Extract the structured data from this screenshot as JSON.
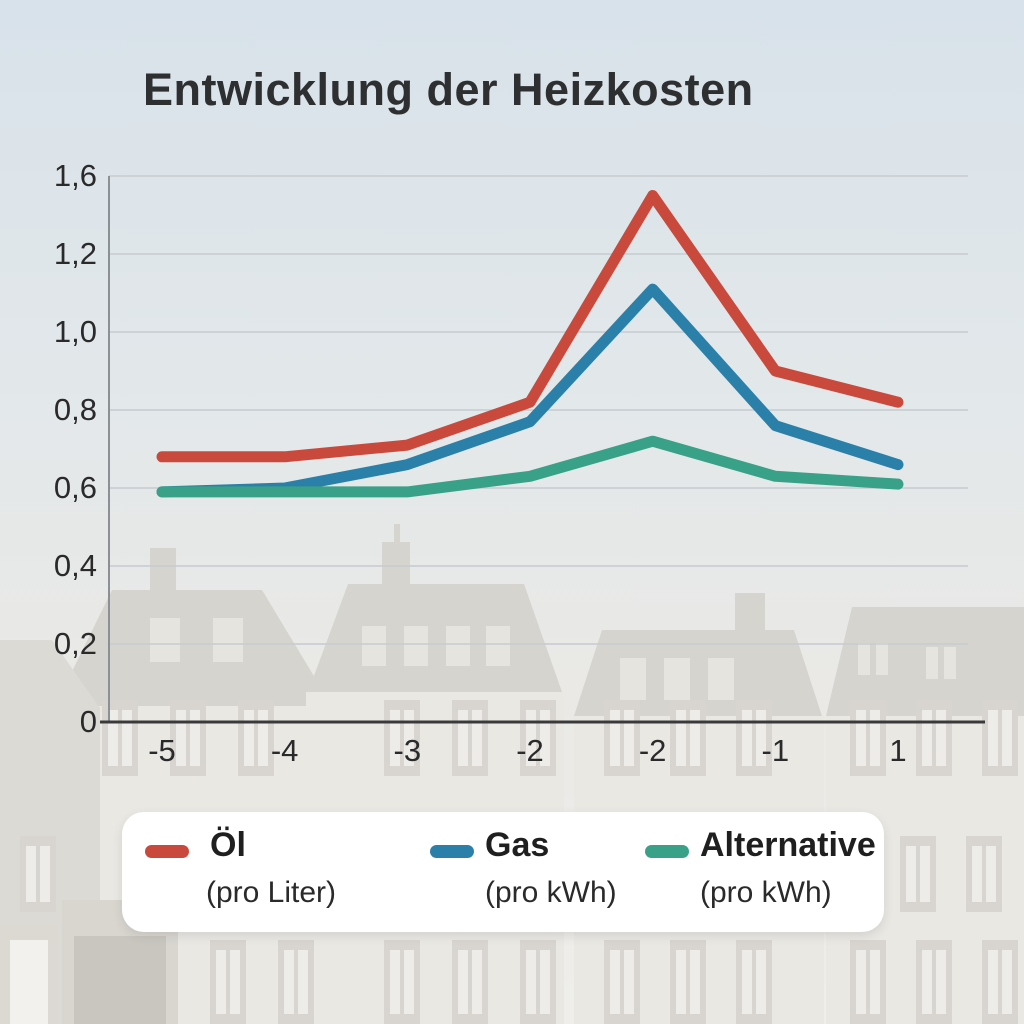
{
  "title": "Entwicklung der Heizkosten",
  "chart_data": {
    "type": "line",
    "title": "Entwicklung der Heizkosten",
    "x_tick_labels": [
      "-5",
      "-4",
      "-3",
      "-2",
      "-2",
      "-1",
      "1"
    ],
    "y_tick_labels": [
      "1,6",
      "1,2",
      "1,0",
      "0,8",
      "0,6",
      "0,4",
      "0,2",
      "0"
    ],
    "y_tick_values": [
      1.6,
      1.2,
      1.0,
      0.8,
      0.6,
      0.4,
      0.2,
      0
    ],
    "ylim": [
      0,
      1.6
    ],
    "grid": true,
    "legend_position": "bottom",
    "series": [
      {
        "name": "Öl",
        "unit": "(pro Liter)",
        "color": "#c94a3c",
        "values": [
          0.68,
          0.68,
          0.71,
          0.82,
          1.5,
          0.9,
          0.82
        ]
      },
      {
        "name": "Gas",
        "unit": "(pro kWh)",
        "color": "#2b80aa",
        "values": [
          0.59,
          0.6,
          0.66,
          0.77,
          1.11,
          0.76,
          0.66
        ]
      },
      {
        "name": "Alternative",
        "unit": "(pro kWh)",
        "color": "#3aa189",
        "values": [
          0.59,
          0.59,
          0.59,
          0.63,
          0.72,
          0.63,
          0.61
        ]
      }
    ]
  },
  "colors": {
    "oil_line": "#c94a3c",
    "gas_line": "#2b80aa",
    "alternative_line": "#3aa189",
    "axis": "#3a3a3a",
    "grid": "#c6cbd0",
    "y_axis": "#8b9094",
    "title_text": "#2e2f31",
    "tick_text": "#2a2a2a",
    "legend_bg": "#ffffff",
    "sky_top": "#d8e2ea",
    "sky_bottom": "#efeeeb",
    "building_roof": "#d6d4cf",
    "building_facade": "#eae8e3"
  }
}
